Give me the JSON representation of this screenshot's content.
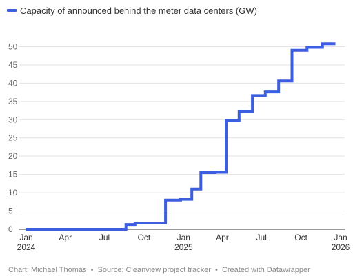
{
  "chart_data": {
    "type": "line",
    "step": "after",
    "color": "#3b5fe0",
    "series": [
      {
        "name": "Capacity of announced behind the meter data centers (GW)",
        "points": [
          [
            "2024-01-01",
            0
          ],
          [
            "2024-08-20",
            1.3
          ],
          [
            "2024-09-10",
            1.7
          ],
          [
            "2024-11-20",
            8.0
          ],
          [
            "2024-12-25",
            8.2
          ],
          [
            "2025-01-20",
            11.0
          ],
          [
            "2025-02-10",
            15.5
          ],
          [
            "2025-03-15",
            15.6
          ],
          [
            "2025-04-10",
            29.8
          ],
          [
            "2025-05-10",
            32.2
          ],
          [
            "2025-06-10",
            36.6
          ],
          [
            "2025-07-10",
            37.6
          ],
          [
            "2025-08-10",
            40.6
          ],
          [
            "2025-09-10",
            49.0
          ],
          [
            "2025-10-15",
            49.8
          ],
          [
            "2025-11-20",
            50.8
          ],
          [
            "2025-12-20",
            50.8
          ]
        ]
      }
    ],
    "ylim": [
      0,
      55
    ],
    "yticks": [
      0,
      5,
      10,
      15,
      20,
      25,
      30,
      35,
      40,
      45,
      50
    ],
    "xlim": [
      "2024-01-01",
      "2026-01-01"
    ],
    "xticks": [
      {
        "date": "2024-01-01",
        "label": "Jan",
        "year": "2024"
      },
      {
        "date": "2024-04-01",
        "label": "Apr",
        "year": ""
      },
      {
        "date": "2024-07-01",
        "label": "Jul",
        "year": ""
      },
      {
        "date": "2024-10-01",
        "label": "Oct",
        "year": ""
      },
      {
        "date": "2025-01-01",
        "label": "Jan",
        "year": "2025"
      },
      {
        "date": "2025-04-01",
        "label": "Apr",
        "year": ""
      },
      {
        "date": "2025-07-01",
        "label": "Jul",
        "year": ""
      },
      {
        "date": "2025-10-01",
        "label": "Oct",
        "year": ""
      },
      {
        "date": "2026-01-01",
        "label": "Jan",
        "year": "2026"
      }
    ],
    "grid": true,
    "legend_position": "top-left"
  },
  "footer": {
    "credit": "Chart: Michael Thomas",
    "source": "Source: Cleanview project tracker",
    "tool": "Created with Datawrapper",
    "separator": "•"
  }
}
